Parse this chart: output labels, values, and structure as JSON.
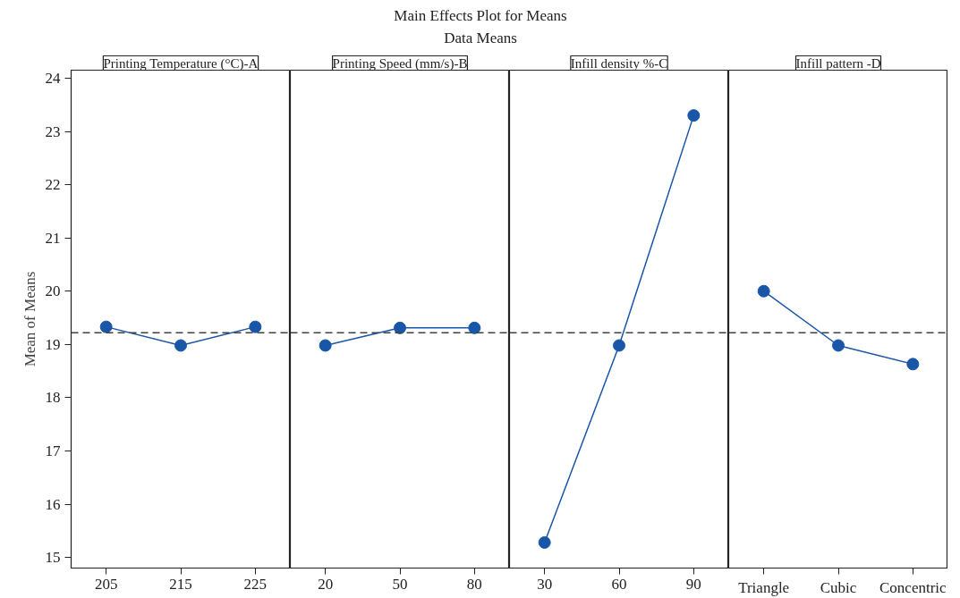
{
  "chart_data": [
    {
      "type": "other",
      "title": "Main Effects Plot for Means",
      "subtitle": "Data Means"
    },
    {
      "type": "line",
      "title": "Printing Temperature (°C)-A",
      "ylabel": "Mean of Means",
      "categories": [
        "205",
        "215",
        "225"
      ],
      "marker": "circle",
      "ylim": [
        14.8,
        24.15
      ],
      "yticks": [
        15,
        16,
        17,
        18,
        19,
        20,
        21,
        22,
        23,
        24
      ],
      "series": [
        {
          "color": "#1a56a8",
          "values": [
            19.33,
            18.98,
            19.33
          ]
        }
      ],
      "ref_lines": [
        {
          "axis": "y",
          "value": 19.22,
          "color": "#404040",
          "line_style": "dashed"
        }
      ]
    },
    {
      "type": "line",
      "title": "Printing Speed (mm/s)-B",
      "categories": [
        "20",
        "50",
        "80"
      ],
      "marker": "circle",
      "ylim": [
        14.8,
        24.15
      ],
      "yticks": [
        15,
        16,
        17,
        18,
        19,
        20,
        21,
        22,
        23,
        24
      ],
      "tick_labels": "x",
      "series": [
        {
          "color": "#1a56a8",
          "values": [
            18.98,
            19.31,
            19.31
          ]
        }
      ],
      "ref_lines": [
        {
          "axis": "y",
          "value": 19.22,
          "color": "#404040",
          "line_style": "dashed"
        }
      ]
    },
    {
      "type": "line",
      "title": "Infill density %-C",
      "categories": [
        "30",
        "60",
        "90"
      ],
      "marker": "circle",
      "ylim": [
        14.8,
        24.15
      ],
      "yticks": [
        15,
        16,
        17,
        18,
        19,
        20,
        21,
        22,
        23,
        24
      ],
      "tick_labels": "x",
      "series": [
        {
          "color": "#1a56a8",
          "values": [
            15.28,
            18.98,
            23.3
          ]
        }
      ],
      "ref_lines": [
        {
          "axis": "y",
          "value": 19.22,
          "color": "#404040",
          "line_style": "dashed"
        }
      ]
    },
    {
      "type": "line",
      "title": "Infill pattern -D",
      "categories": [
        "Triangle",
        "Cubic",
        "Concentric"
      ],
      "marker": "circle",
      "ylim": [
        14.8,
        24.15
      ],
      "yticks": [
        15,
        16,
        17,
        18,
        19,
        20,
        21,
        22,
        23,
        24
      ],
      "tick_labels": "x",
      "series": [
        {
          "color": "#1a56a8",
          "values": [
            20.0,
            18.98,
            18.63
          ]
        }
      ],
      "ref_lines": [
        {
          "axis": "y",
          "value": 19.22,
          "color": "#404040",
          "line_style": "dashed"
        }
      ]
    }
  ]
}
